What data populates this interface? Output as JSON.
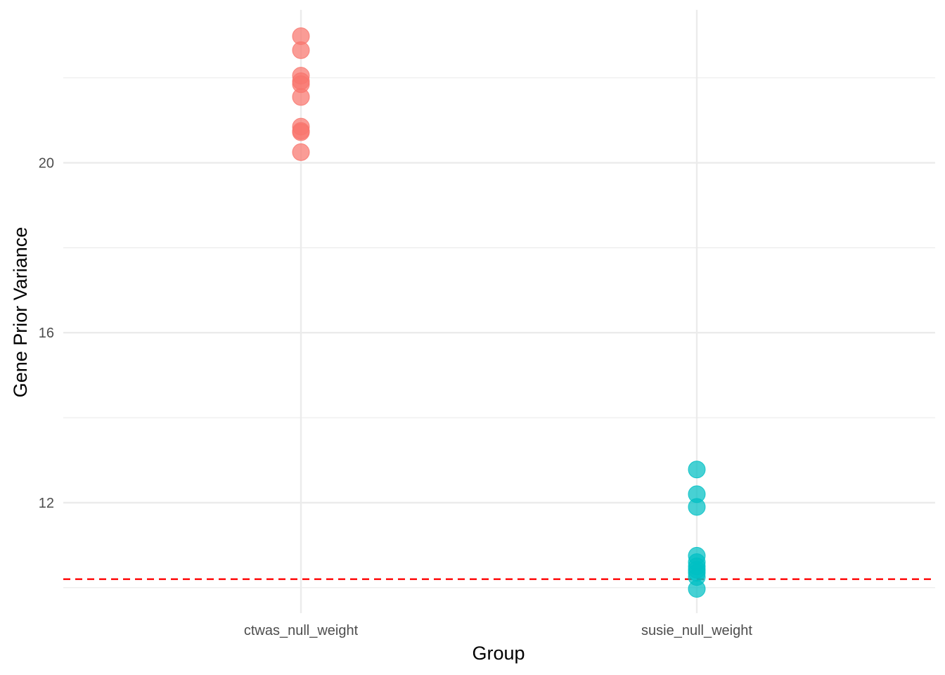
{
  "chart_data": {
    "type": "scatter",
    "title": "",
    "xlabel": "Group",
    "ylabel": "Gene Prior Variance",
    "categories": [
      "ctwas_null_weight",
      "susie_null_weight"
    ],
    "ylim": [
      9.4,
      23.6
    ],
    "yticks": [
      12,
      16,
      20
    ],
    "y_tick_labels": [
      "12",
      "16",
      "20"
    ],
    "grid": true,
    "legend": "none",
    "reference_line": {
      "y": 10.2,
      "style": "dashed",
      "color": "#ff0000"
    },
    "series": [
      {
        "category": "ctwas_null_weight",
        "color": "#f8766d",
        "values": [
          22.98,
          22.65,
          22.05,
          21.92,
          21.85,
          21.55,
          20.85,
          20.75,
          20.72,
          20.25
        ]
      },
      {
        "category": "susie_null_weight",
        "color": "#00bfc4",
        "values": [
          12.78,
          12.2,
          11.9,
          10.75,
          10.6,
          10.5,
          10.42,
          10.35,
          10.25,
          9.97
        ]
      }
    ]
  }
}
